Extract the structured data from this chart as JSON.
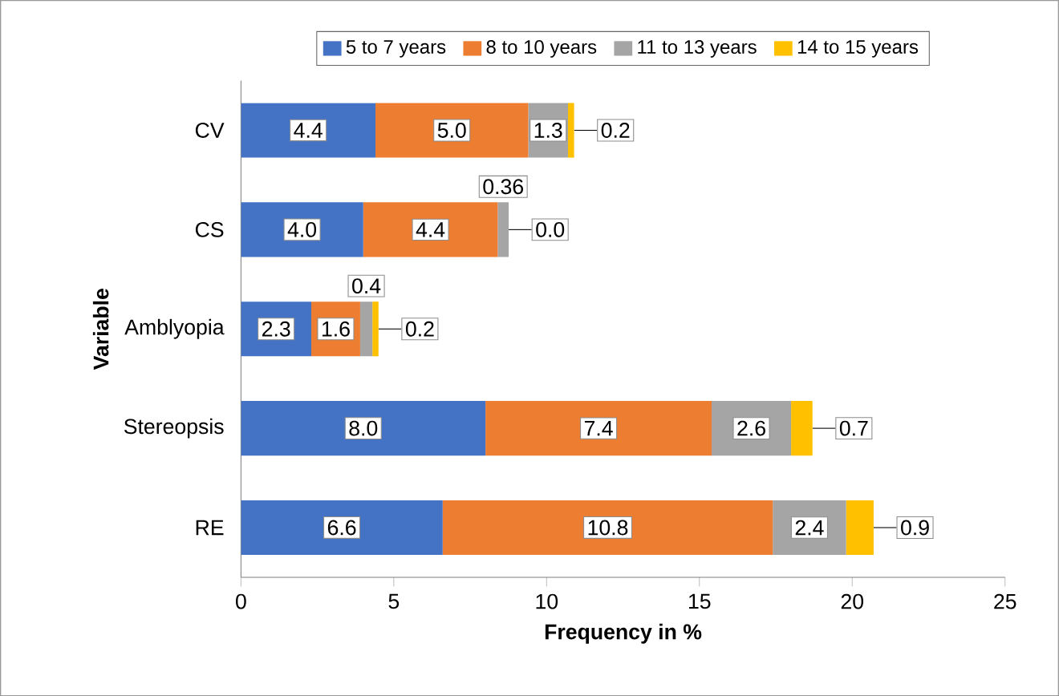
{
  "chart_data": {
    "type": "bar",
    "orientation": "horizontal",
    "stacked": true,
    "xlabel": "Frequency in %",
    "ylabel": "Variable",
    "categories": [
      "CV",
      "CS",
      "Amblyopia",
      "Stereopsis",
      "RE"
    ],
    "series": [
      {
        "name": "5 to 7 years",
        "color": "#4472c4",
        "values": [
          4.4,
          4.0,
          2.3,
          8.0,
          6.6
        ],
        "value_labels": [
          "4.4",
          "4.0",
          "2.3",
          "8.0",
          "6.6"
        ]
      },
      {
        "name": "8 to 10 years",
        "color": "#ed7d31",
        "values": [
          5.0,
          4.4,
          1.6,
          7.4,
          10.8
        ],
        "value_labels": [
          "5.0",
          "4.4",
          "1.6",
          "7.4",
          "10.8"
        ]
      },
      {
        "name": "11 to 13 years",
        "color": "#a5a5a5",
        "values": [
          1.3,
          0.36,
          0.4,
          2.6,
          2.4
        ],
        "value_labels": [
          "1.3",
          "0.36",
          "0.4",
          "2.6",
          "2.4"
        ]
      },
      {
        "name": "14 to 15 years",
        "color": "#ffc000",
        "values": [
          0.2,
          0.0,
          0.2,
          0.7,
          0.9
        ],
        "value_labels": [
          "0.2",
          "0.0",
          "0.2",
          "0.7",
          "0.9"
        ]
      }
    ],
    "xlim": [
      0,
      25
    ],
    "xticks": [
      0,
      5,
      10,
      15,
      20,
      25
    ],
    "legend": "top",
    "grid": false
  }
}
